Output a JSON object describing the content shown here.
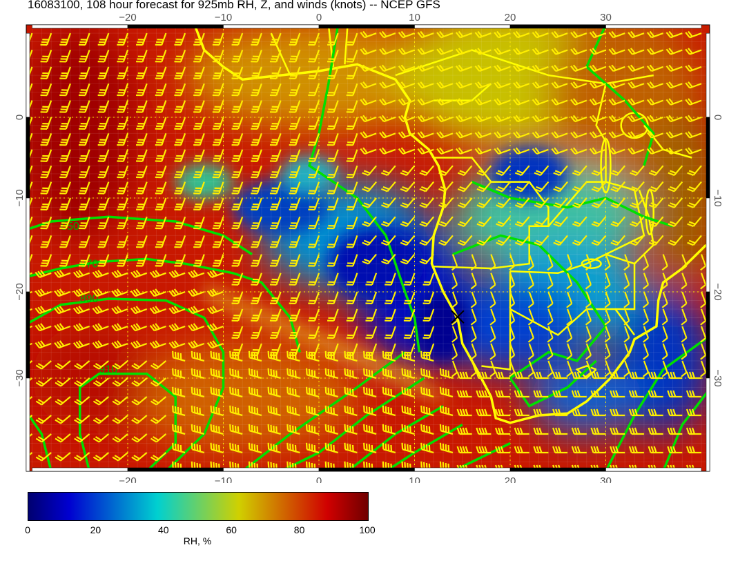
{
  "title": "16083100, 108 hour forecast for 925mb RH, Z, and winds (knots) -- NCEP GFS",
  "map": {
    "lon_ticks": [
      -20,
      -10,
      0,
      10,
      20,
      30
    ],
    "lat_ticks": [
      0,
      -10,
      -20,
      -30
    ],
    "lon_range": [
      -31,
      41
    ],
    "lat_range": [
      11,
      -40
    ],
    "contour_labels": [
      "850",
      "870",
      "890",
      "910"
    ],
    "colors": {
      "coastline": "#ffff00",
      "contours": "#00e000",
      "barbs": "#ffee00"
    },
    "marker": {
      "symbol": "x",
      "lon": 14.5,
      "lat": -22.9
    }
  },
  "colorbar": {
    "label": "RH, %",
    "ticks": [
      "0",
      "20",
      "40",
      "60",
      "80",
      "100"
    ],
    "range": [
      0,
      100
    ],
    "colormap": [
      "#000070",
      "#0000d0",
      "#00d0d0",
      "#d0d000",
      "#d00000",
      "#700000"
    ]
  }
}
